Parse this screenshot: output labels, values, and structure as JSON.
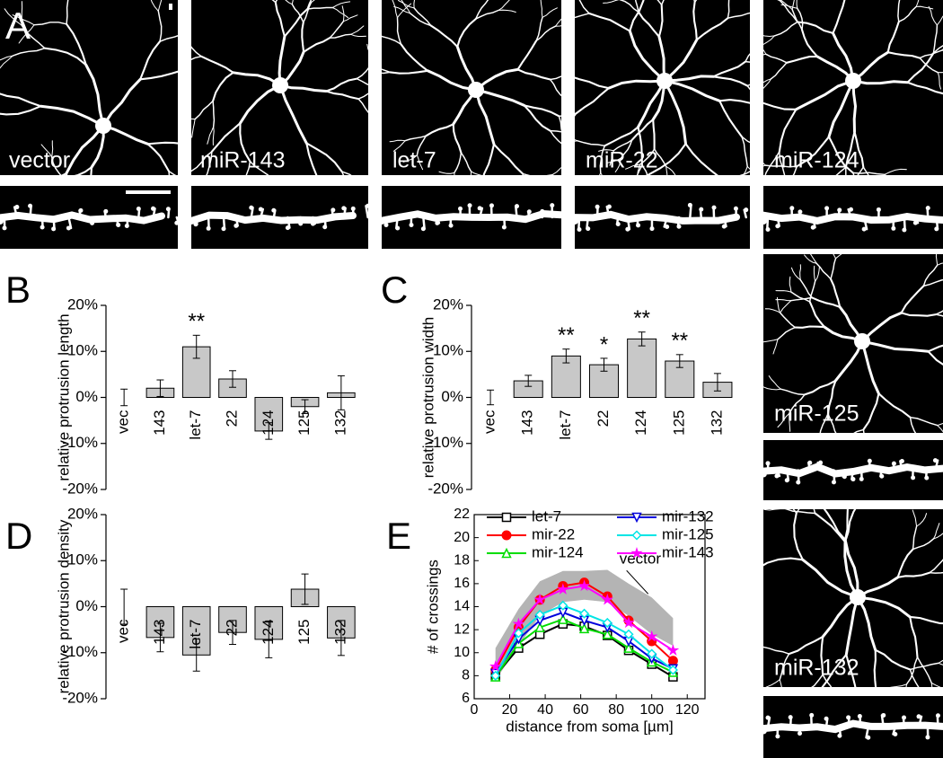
{
  "images": {
    "panel": "A",
    "labels": [
      "vector",
      "miR-143",
      "let-7",
      "miR-22",
      "miR-124",
      "miR-125",
      "miR-132"
    ]
  },
  "chart_data": [
    {
      "type": "bar",
      "panel": "B",
      "ylabel": "relative protrusion length",
      "categories": [
        "vec",
        "143",
        "let-7",
        "22",
        "124",
        "125",
        "132"
      ],
      "values": [
        0,
        2,
        11,
        4,
        -7.3,
        -2,
        1
      ],
      "errors": [
        1.8,
        1.8,
        2.5,
        1.8,
        1.8,
        1.5,
        3.7
      ],
      "significance": [
        null,
        null,
        "**",
        null,
        null,
        null,
        null
      ],
      "color": "#c8c8c8",
      "ylim": [
        -20,
        20
      ],
      "yticks": [
        {
          "value": -20,
          "label": "-20%"
        },
        {
          "value": -10,
          "label": "-10%"
        },
        {
          "value": 0,
          "label": "0%"
        },
        {
          "value": 10,
          "label": "10%"
        },
        {
          "value": 20,
          "label": "20%"
        }
      ]
    },
    {
      "type": "bar",
      "panel": "C",
      "ylabel": "relative protrusion width",
      "categories": [
        "vec",
        "143",
        "let-7",
        "22",
        "124",
        "125",
        "132"
      ],
      "values": [
        0,
        3.6,
        9,
        7.1,
        12.7,
        7.9,
        3.3
      ],
      "errors": [
        1.6,
        1.2,
        1.5,
        1.4,
        1.5,
        1.4,
        1.9
      ],
      "significance": [
        null,
        null,
        "**",
        "*",
        "**",
        "**",
        null
      ],
      "color": "#c8c8c8",
      "ylim": [
        -20,
        20
      ],
      "yticks": [
        {
          "value": -20,
          "label": "-20%"
        },
        {
          "value": -10,
          "label": "-10%"
        },
        {
          "value": 0,
          "label": "0%"
        },
        {
          "value": 10,
          "label": "10%"
        },
        {
          "value": 20,
          "label": "20%"
        }
      ]
    },
    {
      "type": "bar",
      "panel": "D",
      "ylabel": "relative protrusion density",
      "categories": [
        "vec",
        "143",
        "let-7",
        "22",
        "124",
        "125",
        "132"
      ],
      "values": [
        0,
        -6.7,
        -10.5,
        -5.6,
        -7.1,
        3.8,
        -6.8
      ],
      "errors": [
        3.8,
        3.1,
        3.5,
        2.6,
        4,
        3.3,
        3.8
      ],
      "significance": [
        null,
        null,
        null,
        null,
        null,
        null,
        null
      ],
      "color": "#c8c8c8",
      "ylim": [
        -20,
        20
      ],
      "yticks": [
        {
          "value": -20,
          "label": "-20%"
        },
        {
          "value": -10,
          "label": "-10%"
        },
        {
          "value": 0,
          "label": "0%"
        },
        {
          "value": 10,
          "label": "10%"
        },
        {
          "value": 20,
          "label": "20%"
        }
      ]
    },
    {
      "type": "line",
      "panel": "E",
      "ylabel": "# of crossings",
      "xlabel": "distance from soma [µm]",
      "x": [
        12,
        25,
        37,
        50,
        62,
        75,
        87,
        100,
        112
      ],
      "xlim": [
        0,
        130
      ],
      "xticks": [
        0,
        20,
        40,
        60,
        80,
        100,
        120
      ],
      "ylim": [
        6,
        22
      ],
      "yticks": [
        6,
        8,
        10,
        12,
        14,
        16,
        18,
        20,
        22
      ],
      "band": {
        "name": "vector",
        "color": "#b4b4b4",
        "lower": [
          7.6,
          10.6,
          13.2,
          14.4,
          14.6,
          14.4,
          13.2,
          11.6,
          10.6
        ],
        "upper": [
          10.4,
          13.8,
          16.2,
          17.1,
          17.1,
          17.2,
          16,
          14.8,
          13
        ]
      },
      "series": [
        {
          "name": "let-7",
          "color": "#000000",
          "marker": "square",
          "values": [
            8,
            10.4,
            11.6,
            12.5,
            12.3,
            11.5,
            10.2,
            9,
            7.9
          ]
        },
        {
          "name": "mir-22",
          "color": "#ff0000",
          "marker": "circle",
          "values": [
            8.5,
            12.2,
            14.6,
            15.8,
            16.1,
            14.9,
            12.8,
            11,
            9.3
          ]
        },
        {
          "name": "mir-124",
          "color": "#00dd00",
          "marker": "triangle",
          "values": [
            7.9,
            10.8,
            12.2,
            12.9,
            12.1,
            11.6,
            10.4,
            9.2,
            8.3
          ]
        },
        {
          "name": "mir-132",
          "color": "#0000dd",
          "marker": "invtriangle",
          "values": [
            8.2,
            11.2,
            12.8,
            13.5,
            12.8,
            12.2,
            11,
            9.5,
            8.6
          ]
        },
        {
          "name": "mir-125",
          "color": "#00e5e5",
          "marker": "diamond",
          "values": [
            8,
            11.7,
            13.3,
            14.1,
            13.4,
            12.6,
            11.6,
            9.9,
            8.5
          ]
        },
        {
          "name": "mir-143",
          "color": "#ff00ff",
          "marker": "star",
          "values": [
            8.8,
            12.5,
            14.6,
            15.5,
            15.8,
            14.6,
            12.6,
            11.4,
            10.2
          ]
        }
      ]
    }
  ]
}
